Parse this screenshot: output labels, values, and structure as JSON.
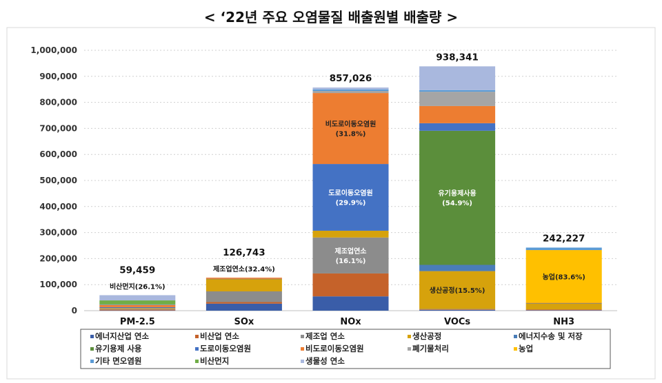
{
  "chart_data": {
    "type": "bar",
    "stacked": true,
    "title": "< ‘22년 주요 오염물질 배출원별 배출량 >",
    "xlabel": "",
    "ylabel": "",
    "ylim": [
      0,
      1000000
    ],
    "yticks": [
      0,
      100000,
      200000,
      300000,
      400000,
      500000,
      600000,
      700000,
      800000,
      900000,
      1000000
    ],
    "ytick_labels": [
      "0",
      "100,000",
      "200,000",
      "300,000",
      "400,000",
      "500,000",
      "600,000",
      "700,000",
      "800,000",
      "900,000",
      "1,000,000"
    ],
    "grid": "horizontal dotted",
    "legend_position": "bottom",
    "categories": [
      "PM-2.5",
      "SOx",
      "NOx",
      "VOCs",
      "NH3"
    ],
    "totals": [
      59459,
      126743,
      857026,
      938341,
      242227
    ],
    "total_labels": [
      "59,459",
      "126,743",
      "857,026",
      "938,341",
      "242,227"
    ],
    "series": [
      {
        "name": "에너지산업 연소",
        "color": "#3A5DA8",
        "values": [
          1000,
          27000,
          55000,
          3000,
          1700
        ]
      },
      {
        "name": "비산업 연소",
        "color": "#C5622A",
        "values": [
          3500,
          6000,
          88000,
          2000,
          3000
        ]
      },
      {
        "name": "제조업 연소",
        "color": "#8C8C8C",
        "values": [
          2500,
          41100,
          138000,
          1500,
          0
        ]
      },
      {
        "name": "생산공정",
        "color": "#D6A20C",
        "values": [
          3000,
          48000,
          26000,
          145400,
          23000
        ]
      },
      {
        "name": "에너지수송 및 저장",
        "color": "#4A7DB8",
        "values": [
          0,
          0,
          0,
          24000,
          0
        ]
      },
      {
        "name": "유기용제 사용",
        "color": "#5B8E3B",
        "values": [
          0,
          0,
          0,
          515000,
          0
        ]
      },
      {
        "name": "도로이동오염원",
        "color": "#4472C4",
        "values": [
          3500,
          300,
          256300,
          29000,
          2000
        ]
      },
      {
        "name": "비도로이동오염원",
        "color": "#ED7D31",
        "values": [
          9000,
          4343,
          272500,
          66000,
          500
        ]
      },
      {
        "name": "폐기물처리",
        "color": "#A5A5A5",
        "values": [
          500,
          0,
          8000,
          55000,
          0
        ]
      },
      {
        "name": "농업",
        "color": "#FFC000",
        "values": [
          0,
          0,
          0,
          0,
          202500
        ]
      },
      {
        "name": "기타 면오염원",
        "color": "#5B9BD5",
        "values": [
          1000,
          0,
          6000,
          6000,
          9527
        ]
      },
      {
        "name": "비산먼지",
        "color": "#70AD47",
        "values": [
          15500,
          0,
          0,
          0,
          0
        ]
      },
      {
        "name": "생물성 연소",
        "color": "#A9B8DE",
        "values": [
          19959,
          0,
          7226,
          91441,
          0
        ]
      }
    ],
    "annotations": [
      {
        "category": "PM-2.5",
        "series": "비산먼지",
        "text": "비산먼지(26.1%)",
        "placement": "above"
      },
      {
        "category": "SOx",
        "series": "제조업 연소",
        "text": "제조업연소(32.4%)",
        "placement": "above"
      },
      {
        "category": "NOx",
        "series": "비도로이동오염원",
        "text": "비도로이동오염원\n(31.8%)",
        "placement": "inside"
      },
      {
        "category": "NOx",
        "series": "도로이동오염원",
        "text": "도로이동오염원\n(29.9%)",
        "placement": "inside"
      },
      {
        "category": "NOx",
        "series": "제조업 연소",
        "text": "제조업연소\n(16.1%)",
        "placement": "inside"
      },
      {
        "category": "VOCs",
        "series": "유기용제 사용",
        "text": "유기용제사용\n(54.9%)",
        "placement": "inside"
      },
      {
        "category": "VOCs",
        "series": "생산공정",
        "text": "생산공정(15.5%)",
        "placement": "inside"
      },
      {
        "category": "NH3",
        "series": "농업",
        "text": "농업(83.6%)",
        "placement": "inside"
      }
    ]
  }
}
